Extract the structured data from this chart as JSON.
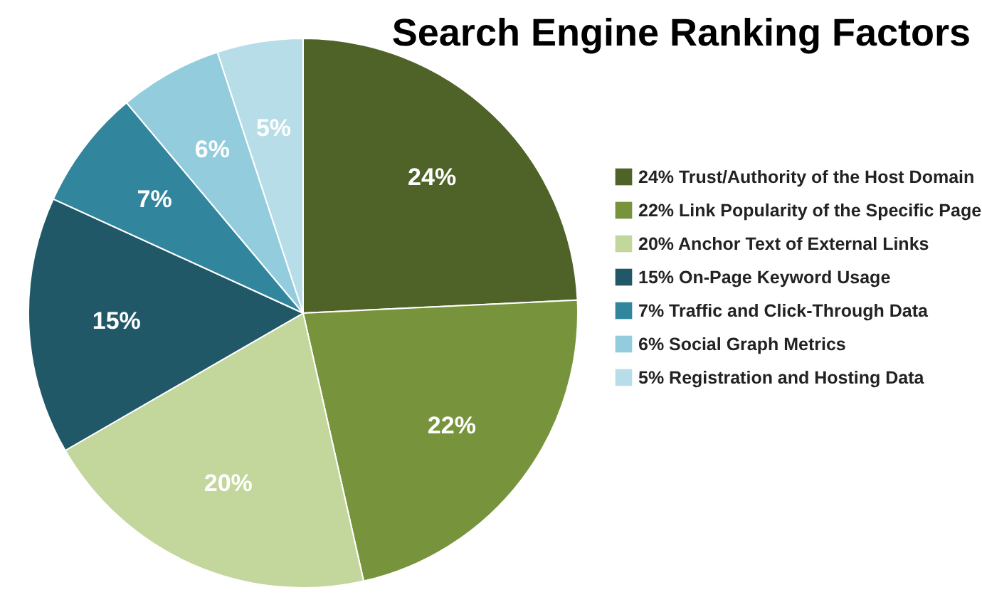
{
  "chart_data": {
    "type": "pie",
    "title": "Search Engine Ranking Factors",
    "categories": [
      "24% Trust/Authority of the Host Domain",
      "22% Link Popularity of the Specific Page",
      "20% Anchor Text of External Links",
      "15% On-Page Keyword Usage",
      "7% Traffic and Click-Through Data",
      "6% Social Graph Metrics",
      "5% Registration and Hosting Data"
    ],
    "values": [
      24,
      22,
      20,
      15,
      7,
      6,
      5
    ],
    "value_labels": [
      "24%",
      "22%",
      "20%",
      "15%",
      "7%",
      "6%",
      "5%"
    ],
    "colors": [
      "#4f6228",
      "#77933c",
      "#c3d69b",
      "#215868",
      "#31859c",
      "#93cddd",
      "#b7dee8"
    ],
    "legend": "right"
  }
}
